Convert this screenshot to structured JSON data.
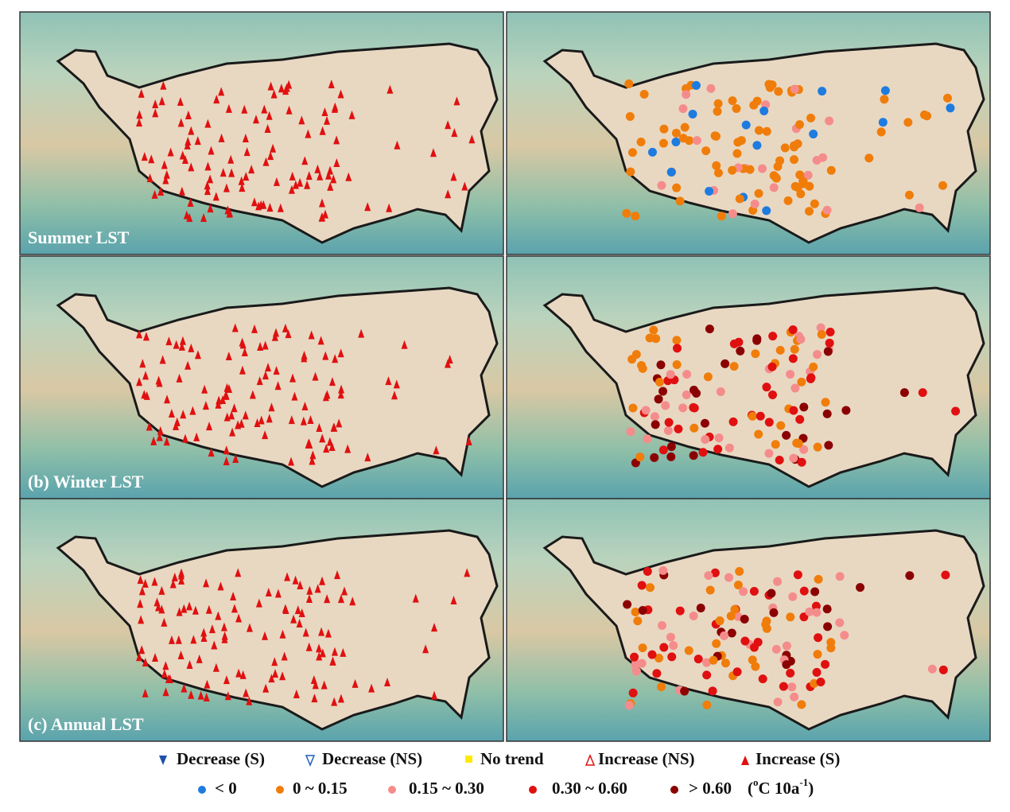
{
  "panels": [
    {
      "label": "Summer LST"
    },
    {
      "label": "(b) Winter LST"
    },
    {
      "label": "(c) Annual LST"
    }
  ],
  "legend": {
    "trend": [
      "Decrease (S)",
      "Decrease (NS)",
      "No trend",
      "Increase (NS)",
      "Increase (S)"
    ],
    "rate": [
      "< 0",
      "0 ~ 0.15",
      "0.15 ~ 0.30",
      "0.30 ~ 0.60",
      "> 0.60"
    ],
    "unit": [
      "(",
      "o",
      "C 10a",
      "-1",
      ")"
    ]
  }
}
